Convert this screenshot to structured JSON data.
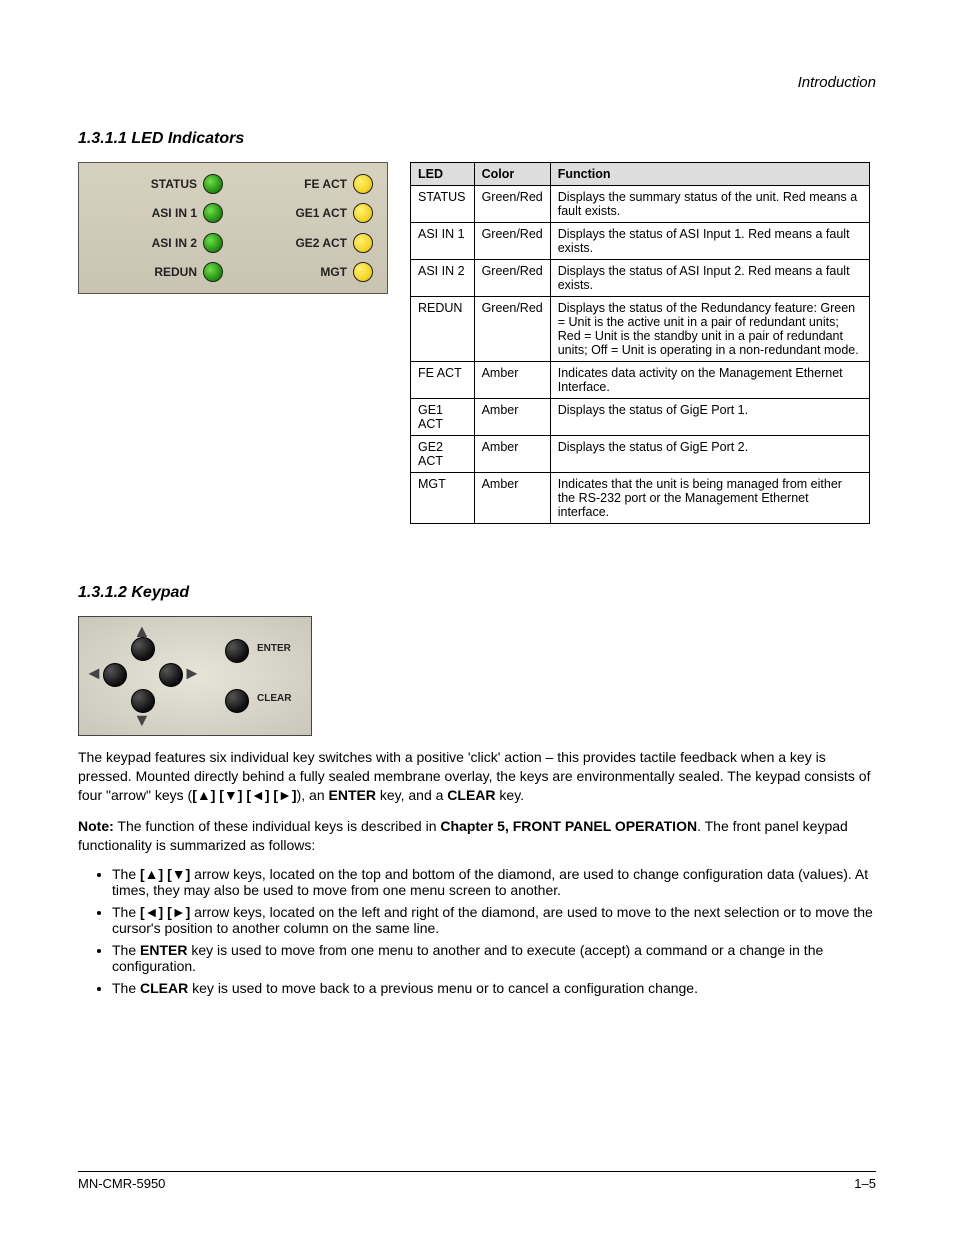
{
  "header": {
    "right": "Introduction"
  },
  "sections": {
    "leds": "1.3.1.1 LED Indicators",
    "keypad": "1.3.1.2 Keypad"
  },
  "led_panel": {
    "bg_gradient_top": "#d7d2bf",
    "bg_gradient_bottom": "#c9c4b2",
    "left_color": "#1d8a0a",
    "left_highlight": "#6ee04a",
    "right_color": "#f2d01a",
    "right_highlight": "#fff176",
    "left": [
      "STATUS",
      "ASI IN 1",
      "ASI IN 2",
      "REDUN"
    ],
    "right": [
      "FE ACT",
      "GE1 ACT",
      "GE2 ACT",
      "MGT"
    ]
  },
  "led_table": {
    "columns": [
      "LED",
      "Color",
      "Function"
    ],
    "rows": [
      {
        "led": "STATUS",
        "color": "Green/Red",
        "function": "Displays the summary status of the unit. Red means a fault exists."
      },
      {
        "led": "ASI IN 1",
        "color": "Green/Red",
        "function": "Displays the status of ASI Input 1. Red means a fault exists."
      },
      {
        "led": "ASI IN 2",
        "color": "Green/Red",
        "function": "Displays the status of ASI Input 2. Red means a fault exists."
      },
      {
        "led": "REDUN",
        "color": "Green/Red",
        "function": "Displays the status of the Redundancy feature: Green = Unit is the active unit in a pair of redundant units; Red = Unit is the standby unit in a pair of redundant units; Off = Unit is operating in a non-redundant mode."
      },
      {
        "led": "FE ACT",
        "color": "Amber",
        "function": "Indicates data activity on the Management Ethernet Interface."
      },
      {
        "led": "GE1 ACT",
        "color": "Amber",
        "function": "Displays the status of GigE Port 1."
      },
      {
        "led": "GE2 ACT",
        "color": "Amber",
        "function": "Displays the status of GigE Port 2."
      },
      {
        "led": "MGT",
        "color": "Amber",
        "function": "Indicates that the unit is being managed from either the RS-232 port or the Management Ethernet interface."
      }
    ],
    "header_bg": "#dddddd",
    "border_color": "#000000",
    "font_size": 12.5
  },
  "keypad_img": {
    "labels": {
      "enter": "ENTER",
      "clear": "CLEAR"
    },
    "bg_outer": "#c9c6ba",
    "bg_inner": "#e7e4d8",
    "button_color": "#0c0c0c"
  },
  "body": {
    "p1a": "The keypad features six individual key switches with a positive 'click' action – this provides tactile feedback when a key is pressed. Mounted directly behind a fully sealed membrane overlay, the keys are environmentally sealed. The keypad consists of four \"arrow\" keys (",
    "p1b": "), an ",
    "p1c": " key, and a ",
    "p1d": " key.",
    "note_prefix": "Note:",
    "note_body": " The function of these individual keys is described in ",
    "note_bold": "Chapter 5, FRONT PANEL OPERATION",
    "note_suffix": ". The front panel keypad functionality is summarized as follows:",
    "arrow_label": "[▲] [▼] [◄] [►]",
    "enter_label": "ENTER",
    "clear_label": "CLEAR",
    "bullets": [
      {
        "prefix": "The ",
        "mid": " arrow keys, located on the top and bottom of the diamond, are used to change configuration data (values). At times, they may also be used to move from one menu screen to another.",
        "keys": "[▲] [▼]"
      },
      {
        "prefix": "The ",
        "mid": " arrow keys, located on the left and right of the diamond, are used to move to the next selection or to move the cursor's position to another column on the same line.",
        "keys": "[◄] [►]"
      },
      {
        "prefix": "The ",
        "mid": " key is used to move from one menu to another and to execute (accept) a command or a change in the configuration.",
        "keys": "ENTER"
      },
      {
        "prefix": "The ",
        "mid": " key is used to move back to a previous menu or to cancel a configuration change.",
        "keys": "CLEAR"
      }
    ]
  },
  "footer": {
    "doc": "MN-CMR-5950",
    "page": "1–5"
  }
}
